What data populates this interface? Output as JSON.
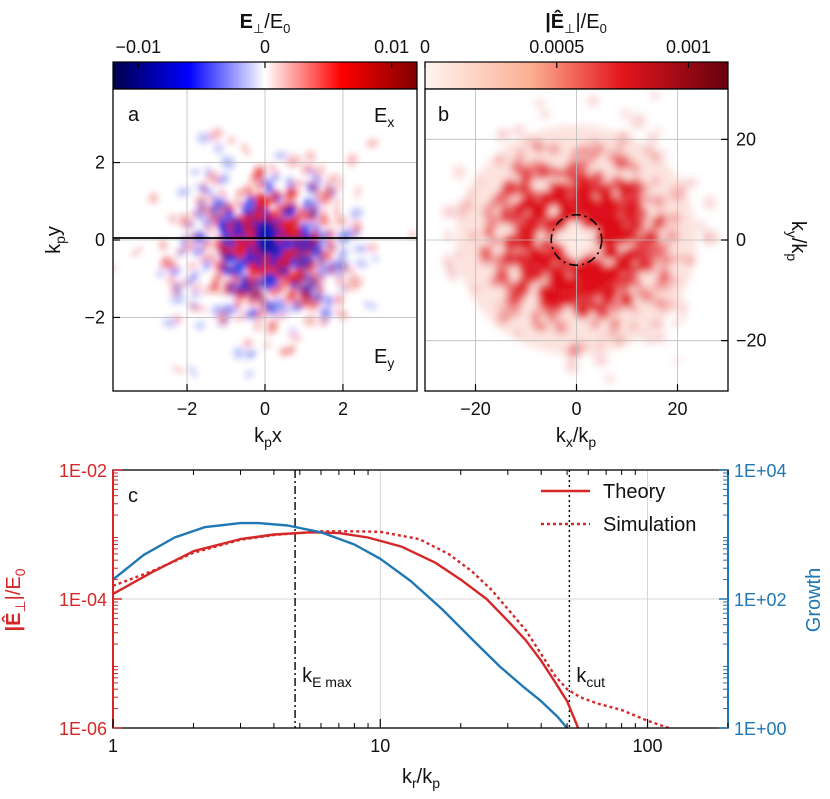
{
  "chart_data": [
    {
      "type": "heatmap",
      "panel": "a",
      "corner_labels": {
        "top_right": "E",
        "top_right_sub": "x",
        "bottom_right": "E",
        "bottom_right_sub": "y"
      },
      "xlabel": "k",
      "xlabel_sub": "p",
      "xlabel_rest": "x",
      "ylabel": "k",
      "ylabel_sub": "p",
      "ylabel_rest": "y",
      "xlim": [
        -3.9,
        3.9
      ],
      "ylim": [
        -3.9,
        3.9
      ],
      "xticks": [
        -2,
        0,
        2
      ],
      "xtick_labels": [
        "−2",
        "0",
        "2"
      ],
      "yticks": [
        -2,
        0,
        2
      ],
      "ytick_labels": [
        "−2",
        "0",
        "2"
      ],
      "colorbar": {
        "title": "E",
        "title_sub": "⊥",
        "title_rest": "/E",
        "title_rest_sub": "0",
        "range": [
          -0.012,
          0.012
        ],
        "ticks": [
          -0.01,
          0,
          0.01
        ],
        "tick_labels": [
          "−0.01",
          "0",
          "0.01"
        ],
        "colormap": "seismic"
      }
    },
    {
      "type": "heatmap",
      "panel": "b",
      "xlabel": "k",
      "xlabel_sub": "x",
      "xlabel_rest": "/k",
      "xlabel_rest_sub": "p",
      "ylabel": "k",
      "ylabel_sub": "y",
      "ylabel_rest": "/k",
      "ylabel_rest_sub": "p",
      "xlim": [
        -30,
        30
      ],
      "ylim": [
        -30,
        30
      ],
      "xticks": [
        -20,
        0,
        20
      ],
      "xtick_labels": [
        "−20",
        "0",
        "20"
      ],
      "yticks": [
        -20,
        0,
        20
      ],
      "ytick_labels": [
        "−20",
        "0",
        "20"
      ],
      "circle_radius": 5,
      "colorbar": {
        "title": "|Ê",
        "title_sub": "⊥",
        "title_rest": "|/E",
        "title_rest_sub": "0",
        "range": [
          0,
          0.00115
        ],
        "ticks": [
          0,
          0.0005,
          0.001
        ],
        "tick_labels": [
          "0",
          "0.0005",
          "0.001"
        ],
        "colormap": "reds"
      }
    },
    {
      "type": "line",
      "panel": "c",
      "xscale": "log",
      "xlim": [
        1,
        200
      ],
      "xticks": [
        1,
        10,
        100
      ],
      "xtick_labels": [
        "1",
        "10",
        "100"
      ],
      "xlabel": "k",
      "xlabel_sub": "r",
      "xlabel_rest": "/k",
      "xlabel_rest_sub": "p",
      "ylabel_left": "|Ê",
      "ylabel_left_sub": "⊥",
      "ylabel_left_rest": "|/E",
      "ylabel_left_rest_sub": "0",
      "ylim_left": [
        1e-06,
        0.01
      ],
      "yticks_left_labels": [
        "1E-02",
        "1E-04",
        "1E-06"
      ],
      "ylabel_right": "Growth",
      "ylim_right": [
        1,
        10000
      ],
      "yticks_right_labels": [
        "1E+04",
        "1E+02",
        "1E+00"
      ],
      "vlines": [
        {
          "x": 4.8,
          "style": "dashdot",
          "label": "k",
          "label_sub": "E max"
        },
        {
          "x": 51,
          "style": "dotted",
          "label": "k",
          "label_sub": "cut"
        }
      ],
      "legend": {
        "position": "top-right",
        "entries": [
          "Theory",
          "Simulation"
        ]
      },
      "series": [
        {
          "name": "Theory",
          "axis": "left",
          "color": "#d62728",
          "style": "solid",
          "x": [
            1,
            1.4,
            2,
            3,
            4,
            5.5,
            7,
            9,
            12,
            16,
            20,
            25,
            30,
            35,
            40,
            45,
            50,
            55
          ],
          "y": [
            0.00012,
            0.00026,
            0.00055,
            0.00085,
            0.001,
            0.00108,
            0.00105,
            0.0009,
            0.00065,
            0.00037,
            0.0002,
            0.0001,
            4.6e-05,
            2.3e-05,
            1.1e-05,
            5.2e-06,
            2.6e-06,
            1e-06
          ]
        },
        {
          "name": "Simulation",
          "axis": "left",
          "color": "#d62728",
          "style": "dotted",
          "x": [
            1,
            1.4,
            2,
            3,
            4,
            5,
            6,
            8,
            10,
            14,
            18,
            22,
            26,
            30,
            35,
            40,
            45,
            50,
            56,
            65,
            80,
            100,
            120
          ],
          "y": [
            0.00016,
            0.00027,
            0.00052,
            0.00083,
            0.00098,
            0.00106,
            0.00112,
            0.00112,
            0.0011,
            0.00085,
            0.0005,
            0.00027,
            0.00014,
            7e-05,
            3.3e-05,
            1.4e-05,
            6.5e-06,
            4e-06,
            3e-06,
            2.4e-06,
            1.9e-06,
            1.3e-06,
            1e-06
          ]
        },
        {
          "name": "Growth",
          "axis": "right",
          "color": "#1f77b4",
          "style": "solid",
          "x": [
            1,
            1.3,
            1.7,
            2.2,
            3,
            3.5,
            4.5,
            6,
            8,
            10,
            13,
            17,
            22,
            28,
            34,
            40,
            46,
            50
          ],
          "y": [
            200,
            480,
            900,
            1300,
            1500,
            1500,
            1380,
            1080,
            700,
            420,
            190,
            70,
            24,
            9,
            4.5,
            2.6,
            1.5,
            1.0
          ]
        }
      ]
    }
  ]
}
